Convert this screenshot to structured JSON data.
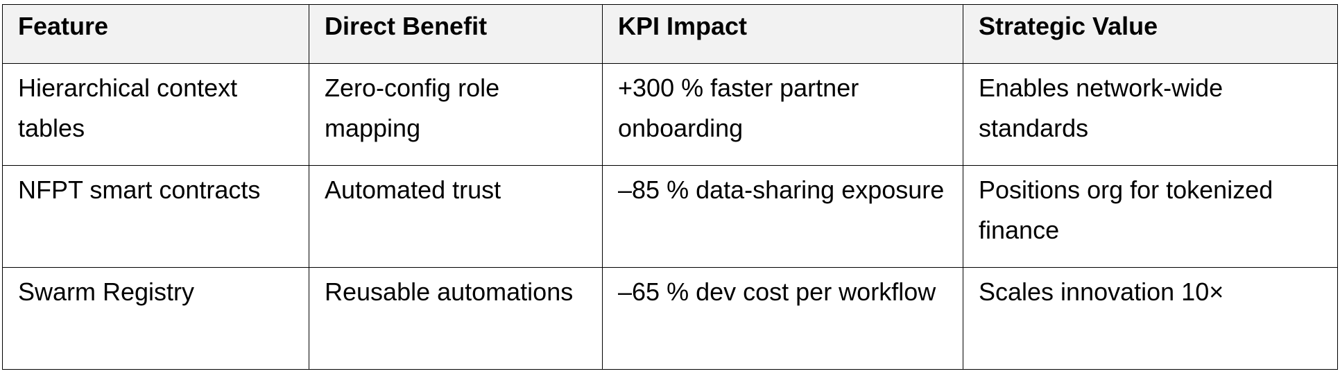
{
  "table": {
    "headers": [
      "Feature",
      "Direct Benefit",
      "KPI Impact",
      "Strategic Value"
    ],
    "rows": [
      [
        "Hierarchical context tables",
        "Zero-config role mapping",
        "+300 % faster partner onboarding",
        "Enables network-wide standards"
      ],
      [
        "NFPT smart contracts",
        "Automated trust",
        "–85 % data-sharing exposure",
        "Positions org for tokenized finance"
      ],
      [
        "Swarm Registry",
        "Reusable automations",
        "–65 % dev cost per workflow",
        "Scales innovation 10×"
      ]
    ]
  },
  "colors": {
    "header_background": "#f2f2f2",
    "border": "#000000",
    "text": "#000000"
  }
}
